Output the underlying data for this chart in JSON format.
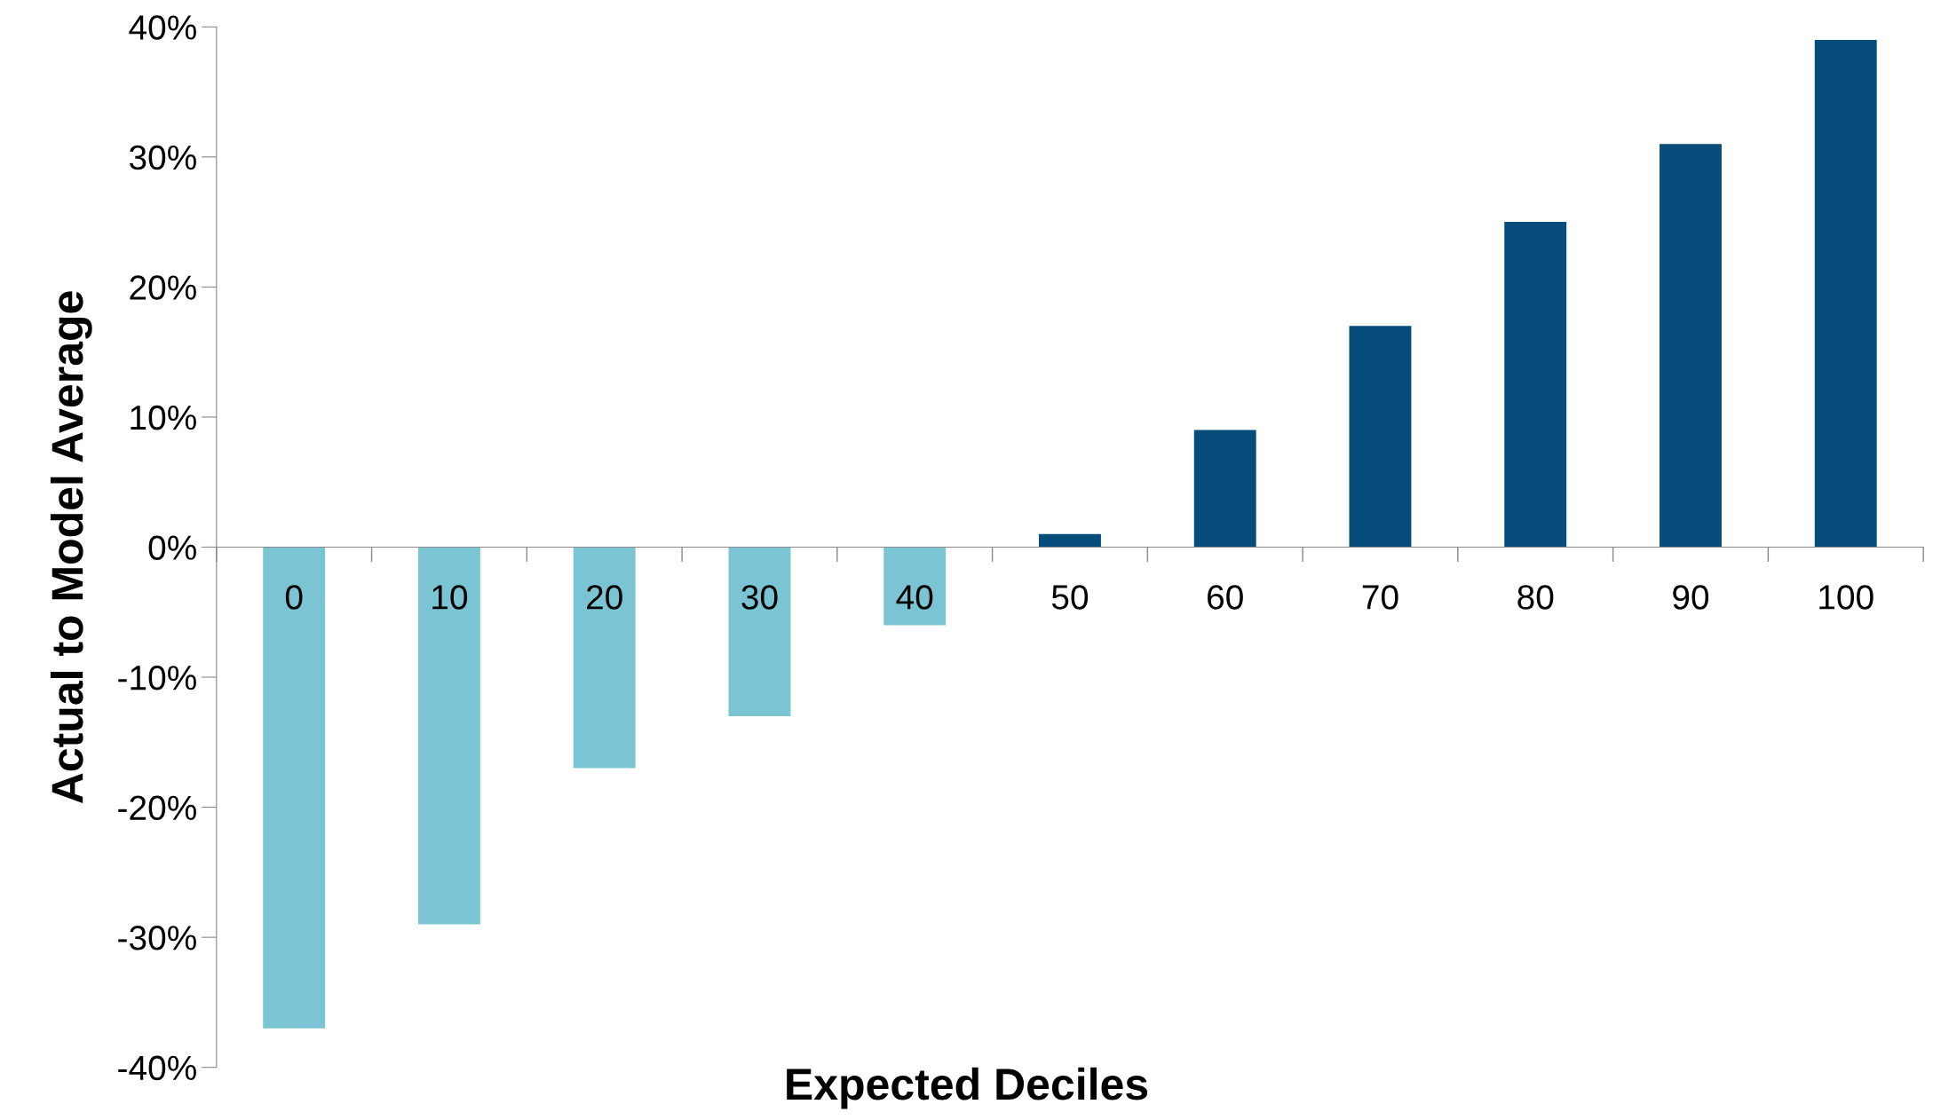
{
  "chart_data": {
    "type": "bar",
    "xlabel": "Expected Deciles",
    "ylabel": "Actual to Model Average",
    "categories": [
      "0",
      "10",
      "20",
      "30",
      "40",
      "50",
      "60",
      "70",
      "80",
      "90",
      "100"
    ],
    "values": [
      -37,
      -29,
      -17,
      -13,
      -6,
      1,
      9,
      17,
      25,
      31,
      39
    ],
    "colors": [
      "#7ac4d4",
      "#7ac4d4",
      "#7ac4d4",
      "#7ac4d4",
      "#7ac4d4",
      "#064d7b",
      "#064d7b",
      "#064d7b",
      "#064d7b",
      "#064d7b",
      "#064d7b"
    ],
    "ylim": [
      -40,
      40
    ],
    "yticks": [
      {
        "value": -40,
        "label": "-40%"
      },
      {
        "value": -30,
        "label": "-30%"
      },
      {
        "value": -20,
        "label": "-20%"
      },
      {
        "value": -10,
        "label": "-10%"
      },
      {
        "value": 0,
        "label": "0%"
      },
      {
        "value": 10,
        "label": "10%"
      },
      {
        "value": 20,
        "label": "20%"
      },
      {
        "value": 30,
        "label": "30%"
      },
      {
        "value": 40,
        "label": "40%"
      }
    ],
    "grid": false,
    "legend": false
  }
}
